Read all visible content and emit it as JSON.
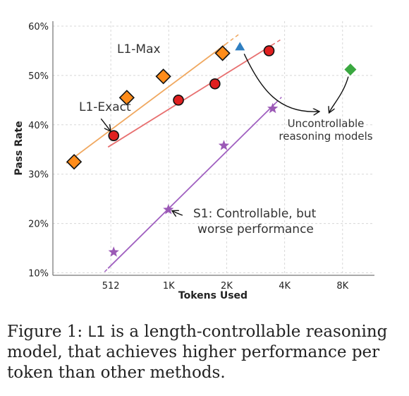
{
  "chart_data": {
    "type": "scatter",
    "xlabel": "Tokens Used",
    "ylabel": "Pass Rate",
    "x_scale": "log2",
    "x_ticks": [
      {
        "value": 512,
        "label": "512"
      },
      {
        "value": 1024,
        "label": "1K"
      },
      {
        "value": 2048,
        "label": "2K"
      },
      {
        "value": 4096,
        "label": "4K"
      },
      {
        "value": 8192,
        "label": "8K"
      }
    ],
    "xlim": [
      256,
      12000
    ],
    "y_ticks": [
      {
        "value": 10,
        "label": "10%"
      },
      {
        "value": 20,
        "label": "20%"
      },
      {
        "value": 30,
        "label": "30%"
      },
      {
        "value": 40,
        "label": "40%"
      },
      {
        "value": 50,
        "label": "50%"
      },
      {
        "value": 60,
        "label": "60%"
      }
    ],
    "ylim": [
      9.5,
      61
    ],
    "grid": "dashed",
    "series": [
      {
        "key": "l1max",
        "color": "#ff8c1a",
        "line_color": "#f0a860",
        "marker": "diamond",
        "points": [
          {
            "x": 330,
            "y": 32.5
          },
          {
            "x": 620,
            "y": 45.5
          },
          {
            "x": 960,
            "y": 49.8
          },
          {
            "x": 1950,
            "y": 54.5
          }
        ],
        "fit": [
          [
            300,
            32.2
          ],
          [
            2400,
            58.5
          ]
        ]
      },
      {
        "key": "l1exact",
        "color": "#e02020",
        "line_color": "#e87070",
        "marker": "circle",
        "points": [
          {
            "x": 530,
            "y": 37.8
          },
          {
            "x": 1150,
            "y": 45.0
          },
          {
            "x": 1780,
            "y": 48.3
          },
          {
            "x": 3400,
            "y": 55.0
          }
        ],
        "fit": [
          [
            520,
            36.0
          ],
          [
            4000,
            57.5
          ]
        ]
      },
      {
        "key": "s1",
        "color": "#9b59b6",
        "line_color": "#a060c0",
        "marker": "star",
        "points": [
          {
            "x": 530,
            "y": 14.2
          },
          {
            "x": 1020,
            "y": 22.8
          },
          {
            "x": 1980,
            "y": 35.8
          },
          {
            "x": 3550,
            "y": 43.3
          }
        ],
        "fit": [
          [
            475,
            10.2
          ],
          [
            3950,
            45.6
          ]
        ]
      },
      {
        "key": "uncontrollable-1",
        "color": "#2f7fc1",
        "marker": "triangle",
        "points": [
          {
            "x": 2400,
            "y": 55.8
          }
        ]
      },
      {
        "key": "uncontrollable-2",
        "color": "#3aa840",
        "marker": "diamond-green",
        "points": [
          {
            "x": 9000,
            "y": 51.2
          }
        ]
      }
    ],
    "annotations": {
      "l1max": "L1-Max",
      "l1exact": "L1-Exact",
      "s1_line1": "S1: Controllable, but",
      "s1_line2": "worse performance",
      "unc_line1": "Uncontrollable",
      "unc_line2": "reasoning models"
    }
  },
  "caption": {
    "prefix": "Figure 1: ",
    "name": "L1",
    "line1_rest": " is a length-controllable reasoning",
    "line2": "model, that achieves higher performance per",
    "line3": "token than other methods."
  }
}
